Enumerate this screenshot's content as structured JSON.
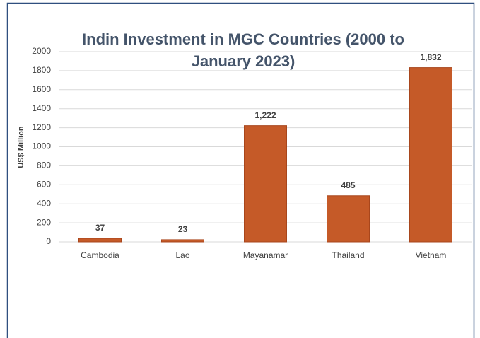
{
  "chart_data": {
    "type": "bar",
    "title": "Indin Investment in MGC Countries (2000 to January 2023)",
    "y_label": "US$ Million",
    "categories": [
      "Cambodia",
      "Lao",
      "Mayanamar",
      "Thailand",
      "Vietnam"
    ],
    "values": [
      37,
      23,
      1222,
      485,
      1832
    ],
    "value_labels": [
      "37",
      "23",
      "1,222",
      "485",
      "1,832"
    ],
    "color": "#c55a28",
    "ylim": [
      0,
      2000
    ],
    "yticks": [
      0,
      200,
      400,
      600,
      800,
      1000,
      1200,
      1400,
      1600,
      1800,
      2000
    ],
    "grid": true
  }
}
